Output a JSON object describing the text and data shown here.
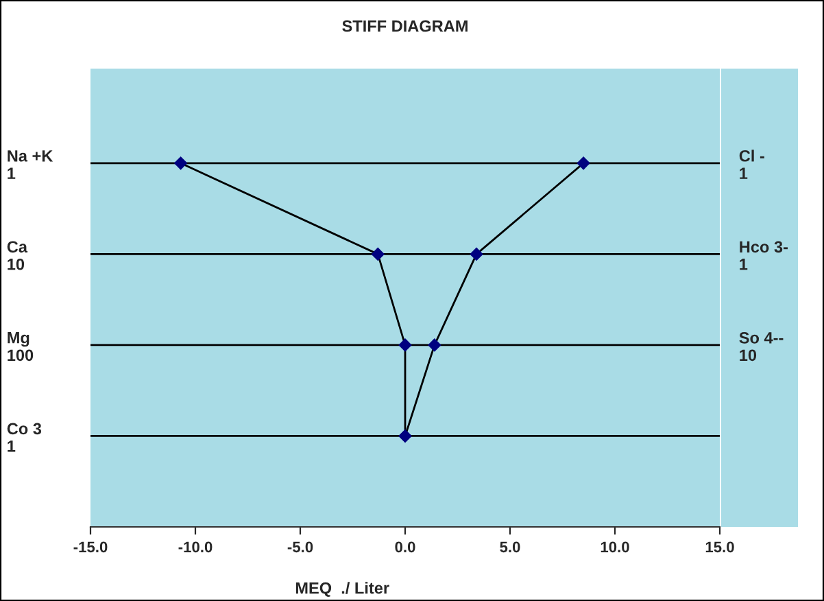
{
  "chart_data": {
    "type": "line",
    "orientation": "horizontal",
    "title": "STIFF DIAGRAM",
    "xlabel": "MEQ  ./ Liter",
    "categories": [
      "Na +K\n1",
      "Ca\n10",
      "Mg\n100",
      "Co 3\n1"
    ],
    "y2_categories": [
      "Cl -\n1",
      "Hco 3-\n1",
      "So 4--\n10",
      null
    ],
    "series": [
      {
        "color": "#000000",
        "values": [
          -10.7,
          -1.3,
          0.0,
          0.0
        ]
      },
      {
        "color": "#000000",
        "values": [
          8.5,
          3.4,
          1.4,
          0.0
        ]
      }
    ],
    "marker": "diamond",
    "line_style": "solid",
    "grid": "y",
    "xlim": [
      -15,
      15
    ],
    "xticks": [
      {
        "value": -15,
        "label": "-15.0"
      },
      {
        "value": -10,
        "label": "-10.0"
      },
      {
        "value": -5,
        "label": "-5.0"
      },
      {
        "value": 0,
        "label": "0.0"
      },
      {
        "value": 5,
        "label": "5.0"
      },
      {
        "value": 10,
        "label": "10.0"
      },
      {
        "value": 15,
        "label": "15.0"
      }
    ]
  }
}
